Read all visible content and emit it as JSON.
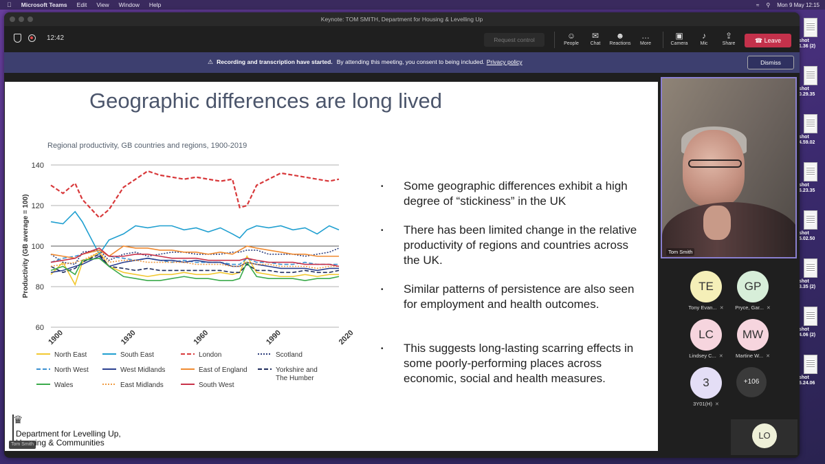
{
  "menubar": {
    "app_name": "Microsoft Teams",
    "items": [
      "Edit",
      "View",
      "Window",
      "Help"
    ],
    "clock": "Mon 9 May  12:15"
  },
  "desktop_files": [
    "shot\n1.36 (2)",
    "shot\n0.29.35",
    "shot\n4.59.02",
    "shot\n6.23.35",
    "shot\n5.02.50",
    "shot\n3.35 (2)",
    "shot\n4.06 (2)",
    "shot\n6.24.06"
  ],
  "window": {
    "title": "Keynote: TOM SMITH, Department for Housing & Levelling Up"
  },
  "toolbar": {
    "timer": "12:42",
    "request_control": "Request control",
    "buttons": [
      {
        "label": "People",
        "icon": "people-icon"
      },
      {
        "label": "Chat",
        "icon": "chat-icon"
      },
      {
        "label": "Reactions",
        "icon": "reactions-icon"
      },
      {
        "label": "More",
        "icon": "more-icon"
      },
      {
        "label": "Camera",
        "icon": "camera-off-icon"
      },
      {
        "label": "Mic",
        "icon": "mic-off-icon"
      },
      {
        "label": "Share",
        "icon": "share-icon"
      }
    ],
    "leave": "Leave"
  },
  "banner": {
    "bold": "Recording and transcription have started.",
    "text": "By attending this meeting, you consent to being included.",
    "link": "Privacy policy",
    "dismiss": "Dismiss"
  },
  "slide": {
    "title": "Geographic differences are long lived",
    "bullets": [
      "Some geographic differences exhibit a high degree of “stickiness” in the UK",
      "There has been limited change in the relative productivity of regions and countries across the UK.",
      "Similar patterns of persistence are also seen for employment and health outcomes.",
      "This suggests long-lasting scarring effects in some poorly-performing places across economic, social and health measures."
    ],
    "logo_text": "Department for Levelling Up, Housing & Communities",
    "tag": "Tom Smith"
  },
  "chart_data": {
    "type": "line",
    "title": "Regional productivity, GB countries and regions, 1900-2019",
    "xlabel": "",
    "ylabel": "Productivity (GB average = 100)",
    "xlim": [
      1900,
      2019
    ],
    "ylim": [
      60,
      140
    ],
    "yticks": [
      60,
      80,
      100,
      120,
      140
    ],
    "xticks": [
      "1900",
      "1930",
      "1960",
      "1990",
      "2020"
    ],
    "x": [
      1900,
      1905,
      1910,
      1913,
      1920,
      1924,
      1930,
      1935,
      1940,
      1945,
      1950,
      1955,
      1960,
      1965,
      1970,
      1975,
      1978,
      1981,
      1985,
      1990,
      1995,
      2000,
      2005,
      2010,
      2015,
      2019
    ],
    "series": [
      {
        "name": "North East",
        "color": "#f2c830",
        "style": "solid",
        "values": [
          86,
          92,
          81,
          92,
          97,
          90,
          87,
          86,
          85,
          86,
          86,
          87,
          86,
          86,
          87,
          86,
          87,
          95,
          87,
          86,
          85,
          85,
          86,
          85,
          86,
          86
        ]
      },
      {
        "name": "South East",
        "color": "#1f9fd0",
        "style": "solid",
        "values": [
          112,
          111,
          117,
          112,
          96,
          103,
          106,
          110,
          109,
          110,
          110,
          108,
          109,
          107,
          109,
          106,
          104,
          108,
          110,
          109,
          110,
          108,
          109,
          106,
          110,
          108
        ]
      },
      {
        "name": "London",
        "color": "#d8383a",
        "style": "dash",
        "values": [
          130,
          126,
          131,
          123,
          114,
          118,
          129,
          133,
          137,
          135,
          134,
          133,
          134,
          133,
          132,
          133,
          119,
          120,
          130,
          133,
          136,
          135,
          134,
          133,
          132,
          133
        ]
      },
      {
        "name": "Scotland",
        "color": "#2a3b7a",
        "style": "dot",
        "values": [
          96,
          92,
          91,
          97,
          98,
          93,
          96,
          97,
          95,
          96,
          97,
          97,
          96,
          96,
          96,
          97,
          97,
          98,
          98,
          96,
          96,
          96,
          95,
          96,
          97,
          99
        ]
      },
      {
        "name": "North West",
        "color": "#3a8fd0",
        "style": "dash",
        "values": [
          92,
          94,
          95,
          96,
          98,
          95,
          94,
          93,
          94,
          93,
          92,
          93,
          92,
          92,
          92,
          91,
          91,
          94,
          92,
          92,
          91,
          91,
          92,
          91,
          91,
          91
        ]
      },
      {
        "name": "West Midlands",
        "color": "#2a3f8f",
        "style": "solid",
        "values": [
          87,
          88,
          90,
          91,
          95,
          90,
          92,
          93,
          94,
          93,
          93,
          92,
          93,
          92,
          92,
          90,
          90,
          92,
          91,
          90,
          89,
          89,
          89,
          88,
          89,
          89
        ]
      },
      {
        "name": "East of England",
        "color": "#f08a30",
        "style": "solid",
        "values": [
          96,
          95,
          94,
          96,
          98,
          95,
          100,
          99,
          99,
          98,
          98,
          97,
          97,
          96,
          97,
          96,
          98,
          100,
          99,
          98,
          97,
          96,
          96,
          95,
          95,
          95
        ]
      },
      {
        "name": "Yorkshire and The Humber",
        "color": "#1c2a5a",
        "style": "dash",
        "values": [
          90,
          87,
          89,
          92,
          96,
          90,
          89,
          88,
          89,
          88,
          88,
          88,
          88,
          88,
          88,
          87,
          87,
          91,
          88,
          88,
          87,
          87,
          88,
          87,
          87,
          88
        ]
      },
      {
        "name": "Wales",
        "color": "#3aaa4a",
        "style": "solid",
        "values": [
          88,
          90,
          86,
          93,
          94,
          90,
          85,
          84,
          83,
          83,
          84,
          85,
          84,
          84,
          83,
          83,
          84,
          92,
          85,
          84,
          84,
          84,
          83,
          84,
          84,
          85
        ]
      },
      {
        "name": "East Midlands",
        "color": "#f09a40",
        "style": "dot",
        "values": [
          90,
          91,
          92,
          93,
          97,
          92,
          93,
          93,
          92,
          92,
          92,
          92,
          91,
          91,
          91,
          90,
          90,
          92,
          91,
          91,
          90,
          90,
          90,
          89,
          90,
          90
        ]
      },
      {
        "name": "South West",
        "color": "#c83048",
        "style": "solid",
        "values": [
          92,
          93,
          94,
          96,
          99,
          95,
          95,
          96,
          96,
          95,
          94,
          94,
          94,
          93,
          93,
          93,
          93,
          94,
          93,
          92,
          92,
          92,
          91,
          91,
          91,
          90
        ]
      }
    ],
    "legend_placement": "bottom",
    "grid": true
  },
  "participants": {
    "speaker": "Tom Smith",
    "list": [
      {
        "initials": "TE",
        "name": "Tony Evan...",
        "color": "#f5efb8"
      },
      {
        "initials": "GP",
        "name": "Pryce, Gar...",
        "color": "#d7eed9"
      },
      {
        "initials": "LC",
        "name": "Lindsey C...",
        "color": "#f6d5de"
      },
      {
        "initials": "MW",
        "name": "Martine W...",
        "color": "#f6d5de"
      },
      {
        "initials": "3",
        "name": "3Y01(H)",
        "color": "#e4def6"
      }
    ],
    "more": "+106",
    "self_initials": "LO"
  }
}
